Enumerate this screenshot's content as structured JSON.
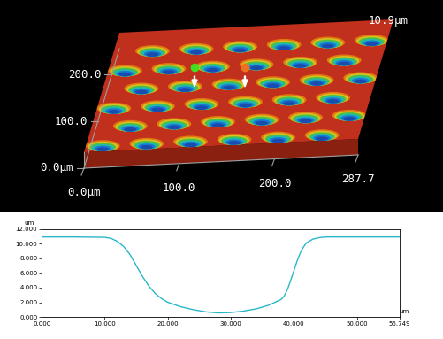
{
  "chart_data": [
    {
      "type": "surface",
      "xlim": [
        0,
        287.7
      ],
      "ylim": [
        0,
        255
      ],
      "xticks": [
        {
          "value": 0,
          "label": "0.0µm"
        },
        {
          "value": 100,
          "label": "100.0"
        },
        {
          "value": 200,
          "label": "200.0"
        },
        {
          "value": 287.7,
          "label": "287.7"
        }
      ],
      "yticks": [
        {
          "value": 0,
          "label": "0.0µm"
        },
        {
          "value": 100,
          "label": "100.0"
        },
        {
          "value": 200,
          "label": "200.0"
        }
      ],
      "zticks": [
        {
          "value": 10.9,
          "label": "10.9µm"
        }
      ],
      "color": "#c0301c"
    },
    {
      "type": "line",
      "x_label": "um",
      "y_label": "um",
      "xlim": [
        0,
        56.749
      ],
      "ylim": [
        0,
        12
      ],
      "xticks": [
        {
          "value": 0,
          "label": "0.000"
        },
        {
          "value": 10,
          "label": "10.000"
        },
        {
          "value": 20,
          "label": "20.000"
        },
        {
          "value": 30,
          "label": "30.000"
        },
        {
          "value": 40,
          "label": "40.000"
        },
        {
          "value": 50,
          "label": "50.000"
        },
        {
          "value": 56.749,
          "label": "56.749"
        }
      ],
      "yticks": [
        {
          "value": 0,
          "label": "0.000"
        },
        {
          "value": 2,
          "label": "2.000"
        },
        {
          "value": 4,
          "label": "4.000"
        },
        {
          "value": 6,
          "label": "6.000"
        },
        {
          "value": 8,
          "label": "8.000"
        },
        {
          "value": 10,
          "label": "10.000"
        },
        {
          "value": 12,
          "label": "12.000"
        }
      ],
      "grid": false,
      "x": [
        0,
        5,
        10,
        11,
        12,
        13,
        14,
        15,
        16,
        17,
        18,
        19,
        20,
        22,
        24,
        26,
        28,
        30,
        32,
        34,
        36,
        37,
        38,
        38.5,
        39,
        39.5,
        40,
        40.5,
        41,
        41.5,
        42,
        43,
        44,
        45,
        50,
        56.749
      ],
      "values": [
        10.9,
        10.9,
        10.85,
        10.7,
        10.3,
        9.6,
        8.5,
        7.0,
        5.5,
        4.2,
        3.2,
        2.5,
        2.0,
        1.4,
        1.0,
        0.7,
        0.55,
        0.6,
        0.8,
        1.1,
        1.6,
        2.0,
        2.4,
        2.9,
        3.8,
        5.0,
        6.3,
        7.6,
        8.7,
        9.5,
        10.1,
        10.6,
        10.8,
        10.9,
        10.9,
        10.9
      ],
      "color": "#2ab7c9"
    }
  ]
}
